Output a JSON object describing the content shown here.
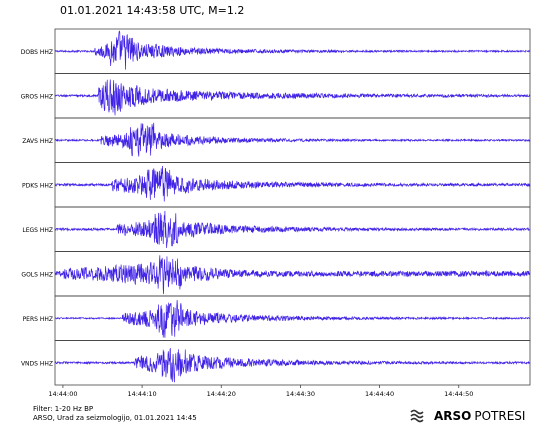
{
  "title": "01.01.2021  14:43:58 UTC, M=1.2",
  "footer": {
    "filter": "Filter: 1-20 Hz BP",
    "credit": "ARSO, Urad za seizmologijo, 01.01.2021  14:45"
  },
  "logo": {
    "brand": "ARSO",
    "sub": "POTRESI",
    "icon": "wave-emblem-icon"
  },
  "chart_data": {
    "type": "line",
    "title": "01.01.2021  14:43:58 UTC, M=1.2",
    "xlabel": "",
    "ylabel": "",
    "x_start": "14:43:59",
    "x_end": "14:44:59",
    "xticks": [
      "14:44:00",
      "14:44:10",
      "14:44:20",
      "14:44:30",
      "14:44:40",
      "14:44:50"
    ],
    "grid": false,
    "trace_color": "#3f22e6",
    "stations": [
      {
        "label": "DOBS HHZ",
        "onset_s": 5.0,
        "peak_s": 8.5,
        "noise": 0.05,
        "coda": 0.22
      },
      {
        "label": "GROS HHZ",
        "onset_s": 5.5,
        "peak_s": 7.0,
        "noise": 0.06,
        "coda": 0.45
      },
      {
        "label": "ZAVS HHZ",
        "onset_s": 5.8,
        "peak_s": 11.0,
        "noise": 0.05,
        "coda": 0.2
      },
      {
        "label": "PDKS HHZ",
        "onset_s": 7.2,
        "peak_s": 13.0,
        "noise": 0.08,
        "coda": 0.35
      },
      {
        "label": "LEGS HHZ",
        "onset_s": 7.8,
        "peak_s": 14.0,
        "noise": 0.07,
        "coda": 0.3
      },
      {
        "label": "GOLS HHZ",
        "onset_s": 1.0,
        "peak_s": 14.5,
        "noise": 0.16,
        "coda": 0.3
      },
      {
        "label": "PERS HHZ",
        "onset_s": 8.5,
        "peak_s": 14.5,
        "noise": 0.04,
        "coda": 0.25
      },
      {
        "label": "VNDS HHZ",
        "onset_s": 10.0,
        "peak_s": 15.0,
        "noise": 0.06,
        "coda": 0.3
      }
    ]
  }
}
